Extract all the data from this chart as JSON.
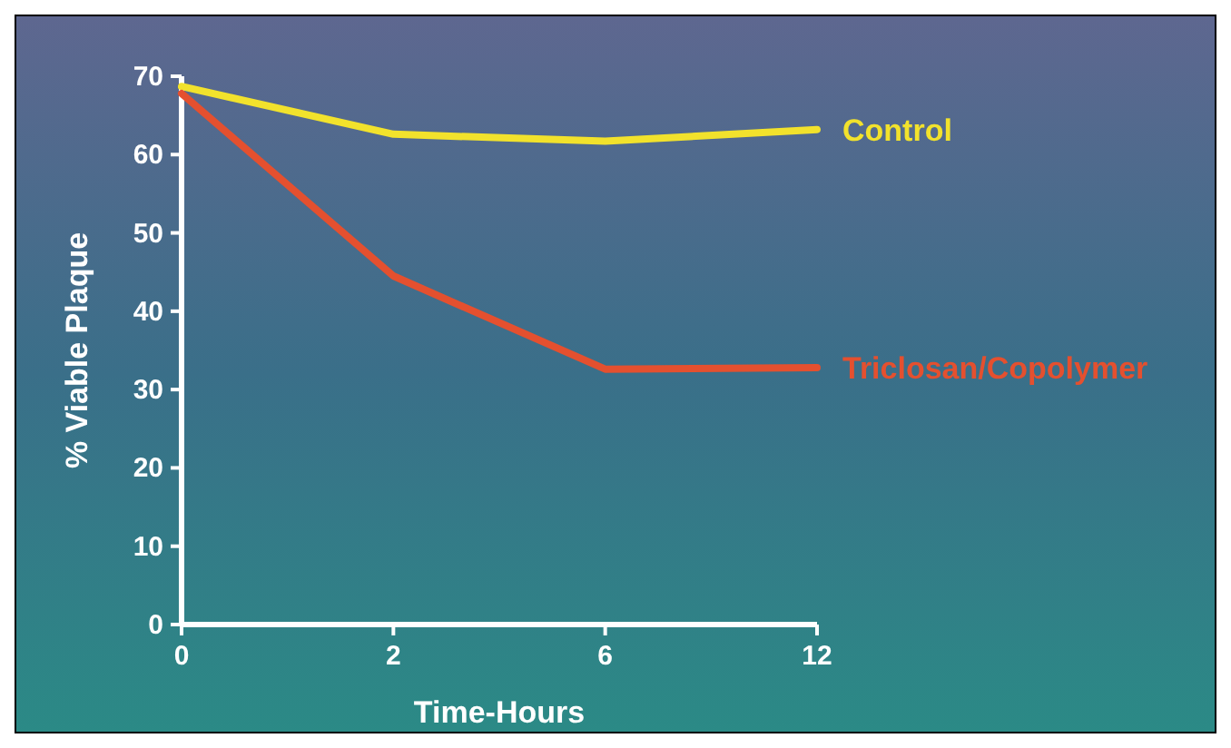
{
  "chart_data": {
    "type": "line",
    "xlabel": "Time-Hours",
    "ylabel": "% Viable Plaque",
    "categories": [
      "0",
      "2",
      "6",
      "12"
    ],
    "series": [
      {
        "name": "Control",
        "color": "#f2e22c",
        "values": [
          68.7,
          62.6,
          61.7,
          63.2
        ]
      },
      {
        "name": "Triclosan/Copolymer",
        "color": "#e4502f",
        "values": [
          67.8,
          44.5,
          32.6,
          32.8
        ]
      }
    ],
    "ylim": [
      0,
      70
    ],
    "yticks": [
      0,
      10,
      20,
      30,
      40,
      50,
      60,
      70
    ],
    "grid": false,
    "marker": "none",
    "line_style": "solid"
  }
}
